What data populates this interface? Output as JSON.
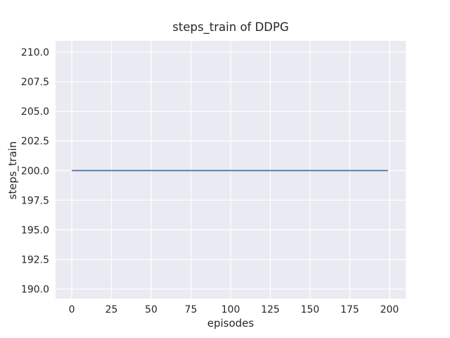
{
  "chart_data": {
    "type": "line",
    "title": "steps_train of DDPG",
    "xlabel": "episodes",
    "ylabel": "steps_train",
    "x_axis": {
      "label": "episodes",
      "tick_values": [
        0,
        25,
        50,
        75,
        100,
        125,
        150,
        175,
        200
      ],
      "tick_labels": [
        "0",
        "25",
        "50",
        "75",
        "100",
        "125",
        "150",
        "175",
        "200"
      ],
      "range": [
        -10.2,
        210.2
      ]
    },
    "y_axis": {
      "label": "steps_train",
      "tick_values": [
        190.0,
        192.5,
        195.0,
        197.5,
        200.0,
        202.5,
        205.0,
        207.5,
        210.0
      ],
      "tick_labels": [
        "190.0",
        "192.5",
        "195.0",
        "197.5",
        "200.0",
        "202.5",
        "205.0",
        "207.5",
        "210.0"
      ],
      "range": [
        189.2,
        210.95
      ]
    },
    "grid": true,
    "legend": "none",
    "series": [
      {
        "name": "steps_train",
        "x": [
          0,
          199
        ],
        "y": [
          200,
          200
        ],
        "color": "#4c72b0"
      }
    ],
    "colors": {
      "figure_background": "#ffffff",
      "plot_background": "#eaeaf2",
      "grid": "#ffffff",
      "text": "#262626",
      "line": "#4c72b0"
    }
  }
}
